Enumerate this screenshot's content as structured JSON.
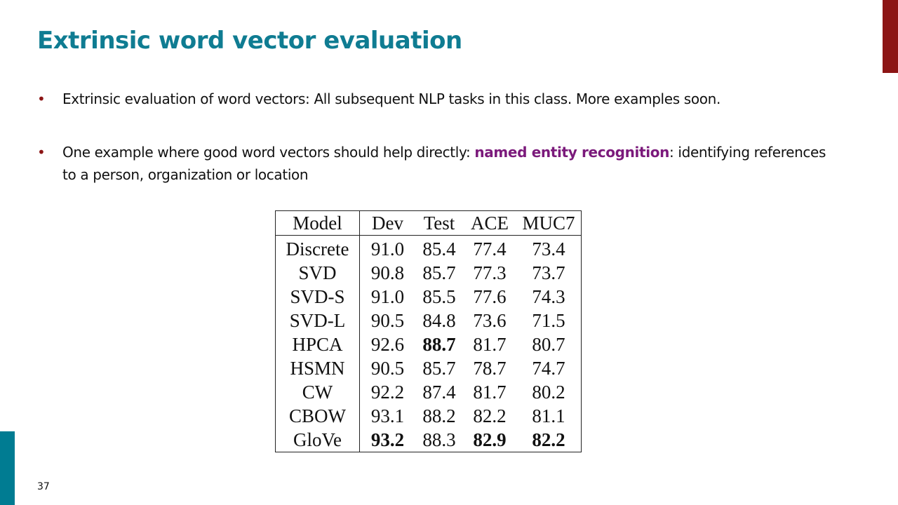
{
  "slide": {
    "title": "Extrinsic word vector evaluation",
    "page_number": "37"
  },
  "bullets": [
    {
      "text": "Extrinsic evaluation of word vectors: All subsequent NLP tasks in this class. More examples soon."
    },
    {
      "before": "One example where good word vectors should help directly: ",
      "highlight": "named entity recognition",
      "after": ": identifying references to a person, organization or location"
    }
  ],
  "table": {
    "headers": [
      "Model",
      "Dev",
      "Test",
      "ACE",
      "MUC7"
    ],
    "rows": [
      {
        "model": "Discrete",
        "values": [
          "91.0",
          "85.4",
          "77.4",
          "73.4"
        ]
      },
      {
        "model": "SVD",
        "values": [
          "90.8",
          "85.7",
          "77.3",
          "73.7"
        ]
      },
      {
        "model": "SVD-S",
        "values": [
          "91.0",
          "85.5",
          "77.6",
          "74.3"
        ]
      },
      {
        "model": "SVD-L",
        "values": [
          "90.5",
          "84.8",
          "73.6",
          "71.5"
        ]
      },
      {
        "model": "HPCA",
        "values": [
          "92.6",
          "88.7",
          "81.7",
          "80.7"
        ],
        "bold": [
          false,
          true,
          false,
          false
        ]
      },
      {
        "model": "HSMN",
        "values": [
          "90.5",
          "85.7",
          "78.7",
          "74.7"
        ]
      },
      {
        "model": "CW",
        "values": [
          "92.2",
          "87.4",
          "81.7",
          "80.2"
        ]
      },
      {
        "model": "CBOW",
        "values": [
          "93.1",
          "88.2",
          "82.2",
          "81.1"
        ]
      },
      {
        "model": "GloVe",
        "values": [
          "93.2",
          "88.3",
          "82.9",
          "82.2"
        ],
        "bold": [
          true,
          false,
          true,
          true
        ]
      }
    ]
  },
  "colors": {
    "title": "#0f7c92",
    "accent_red": "#8c1515",
    "accent_teal": "#007c92",
    "highlight_purple": "#7b1a7b"
  }
}
